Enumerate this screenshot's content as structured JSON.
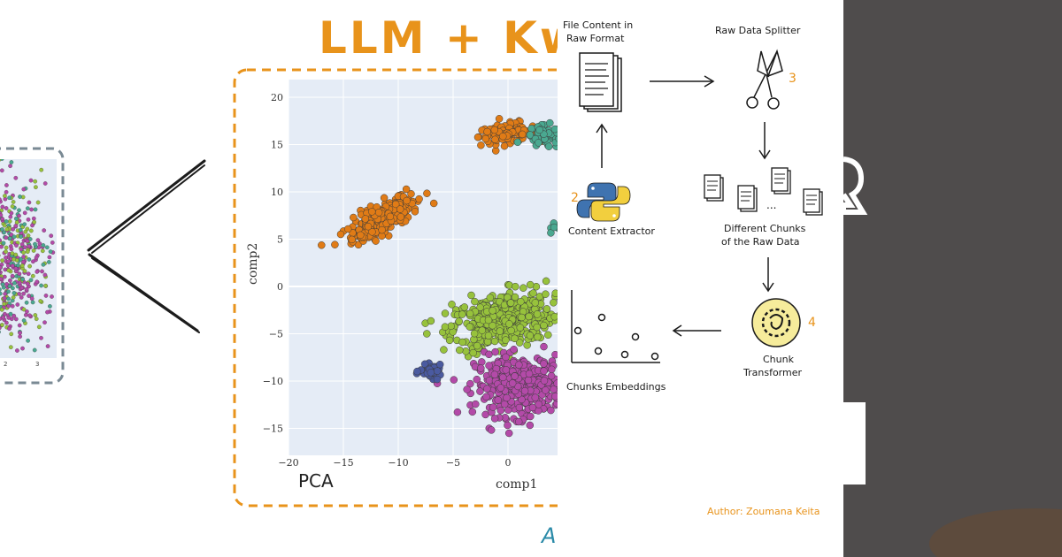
{
  "title_text": "LLM + Kw",
  "pca_label": "PCA",
  "bottom_partial_text": "A",
  "author": "Author: Zoumana Keita",
  "flow": {
    "file_content": [
      "File Content in",
      "Raw Format"
    ],
    "splitter": "Raw Data Splitter",
    "splitter_num": "3",
    "extractor": "Content Extractor",
    "extractor_num": "2",
    "chunks": [
      "Different Chunks",
      "of the Raw Data"
    ],
    "chunks_ellipsis": "...",
    "transformer": [
      "Chunk",
      "Transformer"
    ],
    "transformer_num": "4",
    "embeddings": "Chunks Embeddings"
  },
  "left_thumb_ticks": [
    "2",
    "3"
  ],
  "colors": {
    "accent_orange": "#e8931b",
    "dash_gray": "#7a8a94",
    "plot_bg": "#e5ecf6",
    "orange_cluster": "#e07b16",
    "teal_cluster": "#4aa890",
    "green_cluster": "#97c23c",
    "magenta_cluster": "#b34aa8",
    "blue_cluster": "#4a5aa0",
    "right_panel": "#4f4c4c",
    "python_blue": "#3f73b0",
    "python_yellow": "#f2cf3e",
    "transformer_fill": "#f6ec9b"
  },
  "chart_data": {
    "type": "scatter",
    "title": "",
    "xlabel": "comp1",
    "ylabel": "comp2",
    "xlim": [
      -20,
      5
    ],
    "ylim": [
      -18,
      21
    ],
    "x_ticks": [
      -20,
      -15,
      -10,
      -5,
      0
    ],
    "y_ticks": [
      20,
      15,
      10,
      5,
      0,
      -5,
      -10,
      -15
    ],
    "grid": true,
    "series": [
      {
        "color": "#e07b16",
        "clusters": [
          {
            "cx": -11.5,
            "cy": 7.2,
            "sx": 3.2,
            "sy": 1.3,
            "rot": 35,
            "n": 260
          },
          {
            "cx": 0,
            "cy": 16.2,
            "sx": 2.4,
            "sy": 0.9,
            "rot": 8,
            "n": 110
          }
        ]
      },
      {
        "color": "#4aa890",
        "clusters": [
          {
            "cx": 3.5,
            "cy": 15.8,
            "sx": 1.8,
            "sy": 1.1,
            "rot": 0,
            "n": 70
          },
          {
            "cx": 4.4,
            "cy": 6.5,
            "sx": 0.4,
            "sy": 0.6,
            "rot": 0,
            "n": 6
          }
        ]
      },
      {
        "color": "#97c23c",
        "clusters": [
          {
            "cx": -0.5,
            "cy": -3.5,
            "sx": 4.4,
            "sy": 2.6,
            "rot": 15,
            "n": 420
          }
        ]
      },
      {
        "color": "#b34aa8",
        "clusters": [
          {
            "cx": 1.0,
            "cy": -10.5,
            "sx": 3.6,
            "sy": 2.9,
            "rot": 0,
            "n": 380
          }
        ]
      },
      {
        "color": "#4a5aa0",
        "clusters": [
          {
            "cx": -7.0,
            "cy": -9.0,
            "sx": 0.9,
            "sy": 0.6,
            "rot": 0,
            "n": 40
          }
        ]
      }
    ]
  }
}
